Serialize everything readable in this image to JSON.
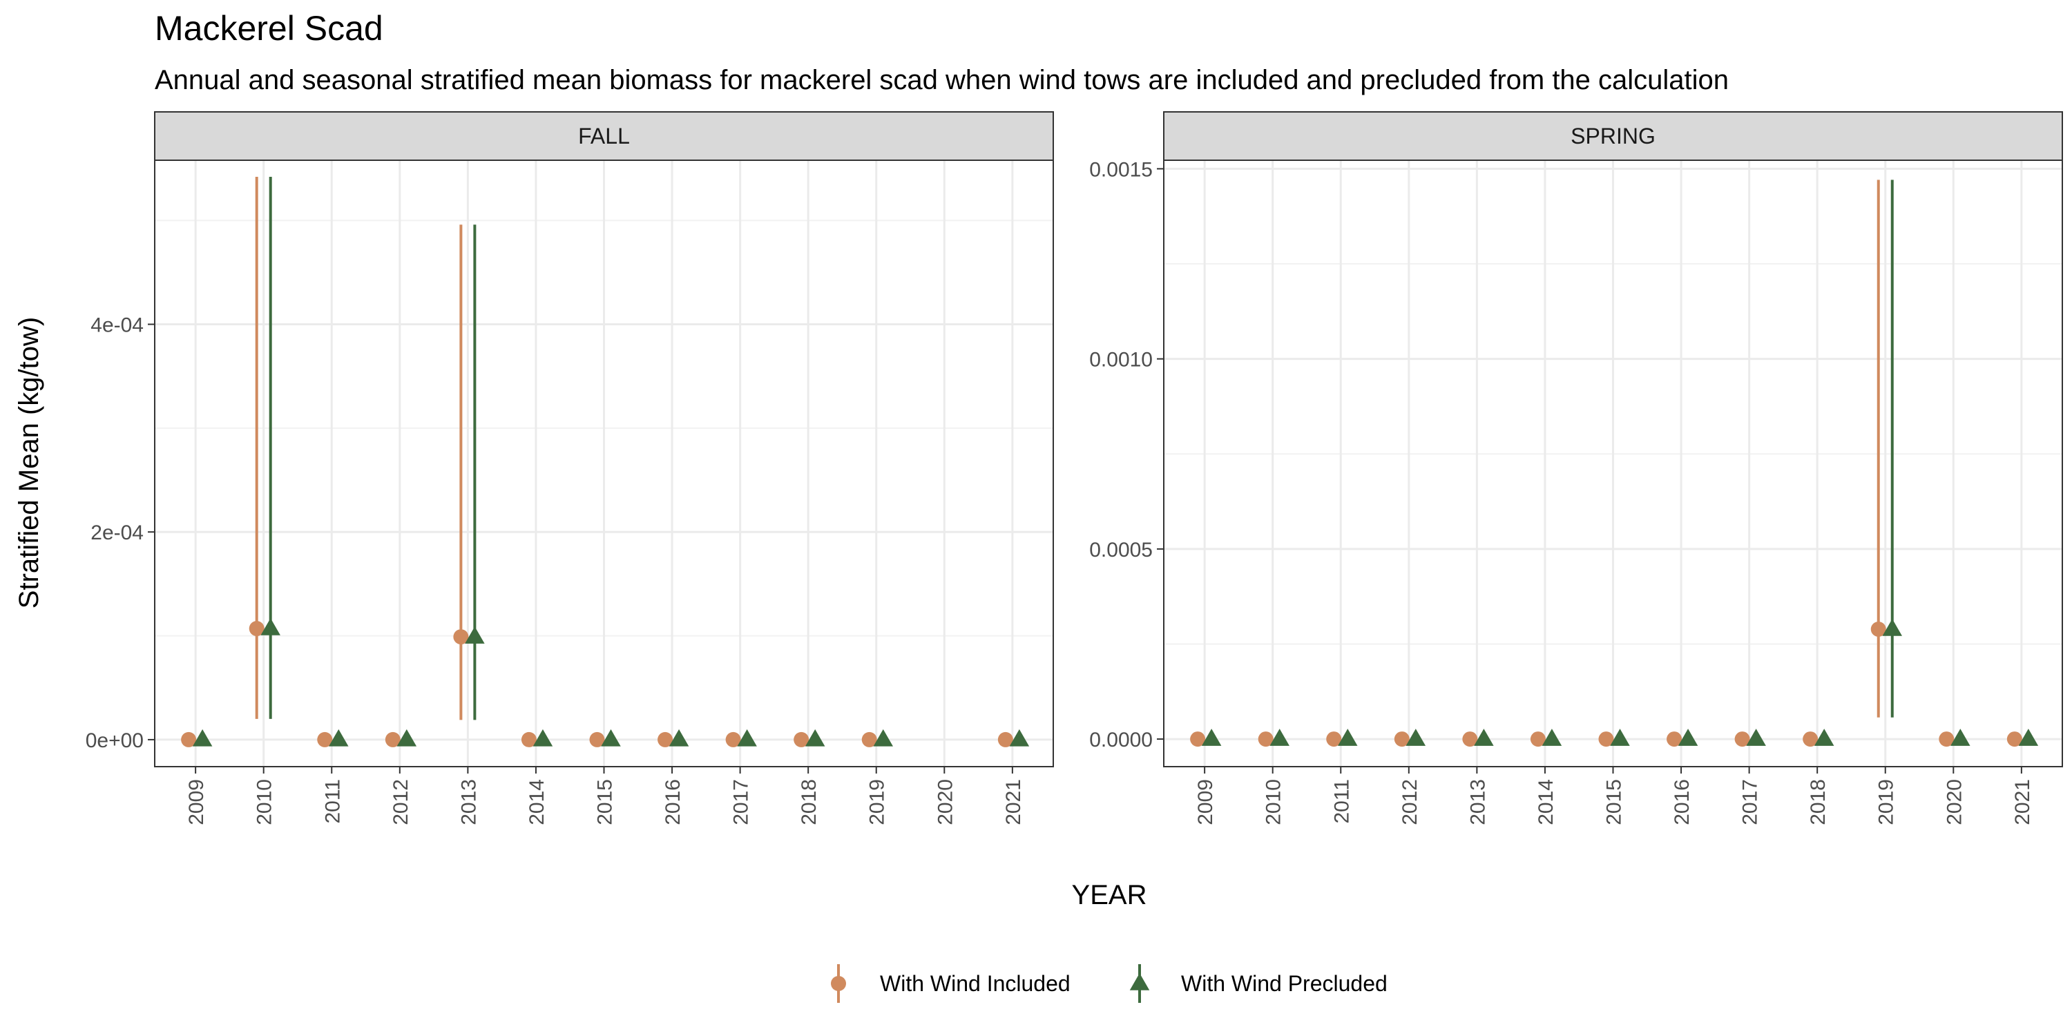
{
  "title": "Mackerel Scad",
  "subtitle": "Annual and seasonal stratified mean biomass for mackerel scad when wind tows are included and precluded from the calculation",
  "xlabel": "YEAR",
  "ylabel": "Stratified Mean (kg/tow)",
  "colors": {
    "included": "#D08A5E",
    "precluded": "#3D6B3E",
    "strip_fill": "#D9D9D9",
    "panel_border": "#333333",
    "grid": "#EBEBEB"
  },
  "legend": {
    "position": "bottom",
    "items": [
      {
        "key": "included",
        "label": "With Wind Included",
        "shape": "circle"
      },
      {
        "key": "precluded",
        "label": "With Wind Precluded",
        "shape": "triangle"
      }
    ]
  },
  "chart_data": {
    "type": "scatter",
    "error_bars": true,
    "x_categories": [
      "2009",
      "2010",
      "2011",
      "2012",
      "2013",
      "2014",
      "2015",
      "2016",
      "2017",
      "2018",
      "2019",
      "2020",
      "2021"
    ],
    "panels": [
      {
        "name": "FALL",
        "ylim": [
          -2.6e-05,
          0.000558
        ],
        "yticks": [
          0,
          0.0002,
          0.0004
        ],
        "ytick_labels": [
          "0e+00",
          "2e-04",
          "4e-04"
        ],
        "series": [
          {
            "name": "With Wind Included",
            "key": "included",
            "points": [
              {
                "x": "2009",
                "y": 0
              },
              {
                "x": "2010",
                "y": 0.000107,
                "ymin": 2e-05,
                "ymax": 0.000542
              },
              {
                "x": "2011",
                "y": 0
              },
              {
                "x": "2012",
                "y": 0
              },
              {
                "x": "2013",
                "y": 9.9e-05,
                "ymin": 1.9e-05,
                "ymax": 0.000496
              },
              {
                "x": "2014",
                "y": 0
              },
              {
                "x": "2015",
                "y": 0
              },
              {
                "x": "2016",
                "y": 0
              },
              {
                "x": "2017",
                "y": 0
              },
              {
                "x": "2018",
                "y": 0
              },
              {
                "x": "2019",
                "y": 0
              },
              {
                "x": "2021",
                "y": 0
              }
            ]
          },
          {
            "name": "With Wind Precluded",
            "key": "precluded",
            "points": [
              {
                "x": "2009",
                "y": 0
              },
              {
                "x": "2010",
                "y": 0.000107,
                "ymin": 2e-05,
                "ymax": 0.000542
              },
              {
                "x": "2011",
                "y": 0
              },
              {
                "x": "2012",
                "y": 0
              },
              {
                "x": "2013",
                "y": 9.9e-05,
                "ymin": 1.9e-05,
                "ymax": 0.000496
              },
              {
                "x": "2014",
                "y": 0
              },
              {
                "x": "2015",
                "y": 0
              },
              {
                "x": "2016",
                "y": 0
              },
              {
                "x": "2017",
                "y": 0
              },
              {
                "x": "2018",
                "y": 0
              },
              {
                "x": "2019",
                "y": 0
              },
              {
                "x": "2021",
                "y": 0
              }
            ]
          }
        ]
      },
      {
        "name": "SPRING",
        "ylim": [
          -7.25e-05,
          0.0015225
        ],
        "yticks": [
          0,
          0.0005,
          0.001,
          0.0015
        ],
        "ytick_labels": [
          "0.0000",
          "0.0005",
          "0.0010",
          "0.0015"
        ],
        "series": [
          {
            "name": "With Wind Included",
            "key": "included",
            "points": [
              {
                "x": "2009",
                "y": 0
              },
              {
                "x": "2010",
                "y": 0
              },
              {
                "x": "2011",
                "y": 0
              },
              {
                "x": "2012",
                "y": 0
              },
              {
                "x": "2013",
                "y": 0
              },
              {
                "x": "2014",
                "y": 0
              },
              {
                "x": "2015",
                "y": 0
              },
              {
                "x": "2016",
                "y": 0
              },
              {
                "x": "2017",
                "y": 0
              },
              {
                "x": "2018",
                "y": 0
              },
              {
                "x": "2019",
                "y": 0.000289,
                "ymin": 5.7e-05,
                "ymax": 0.001471
              },
              {
                "x": "2020",
                "y": 0
              },
              {
                "x": "2021",
                "y": 0
              }
            ]
          },
          {
            "name": "With Wind Precluded",
            "key": "precluded",
            "points": [
              {
                "x": "2009",
                "y": 0
              },
              {
                "x": "2010",
                "y": 0
              },
              {
                "x": "2011",
                "y": 0
              },
              {
                "x": "2012",
                "y": 0
              },
              {
                "x": "2013",
                "y": 0
              },
              {
                "x": "2014",
                "y": 0
              },
              {
                "x": "2015",
                "y": 0
              },
              {
                "x": "2016",
                "y": 0
              },
              {
                "x": "2017",
                "y": 0
              },
              {
                "x": "2018",
                "y": 0
              },
              {
                "x": "2019",
                "y": 0.000289,
                "ymin": 5.7e-05,
                "ymax": 0.001471
              },
              {
                "x": "2020",
                "y": 0
              },
              {
                "x": "2021",
                "y": 0
              }
            ]
          }
        ]
      }
    ]
  }
}
